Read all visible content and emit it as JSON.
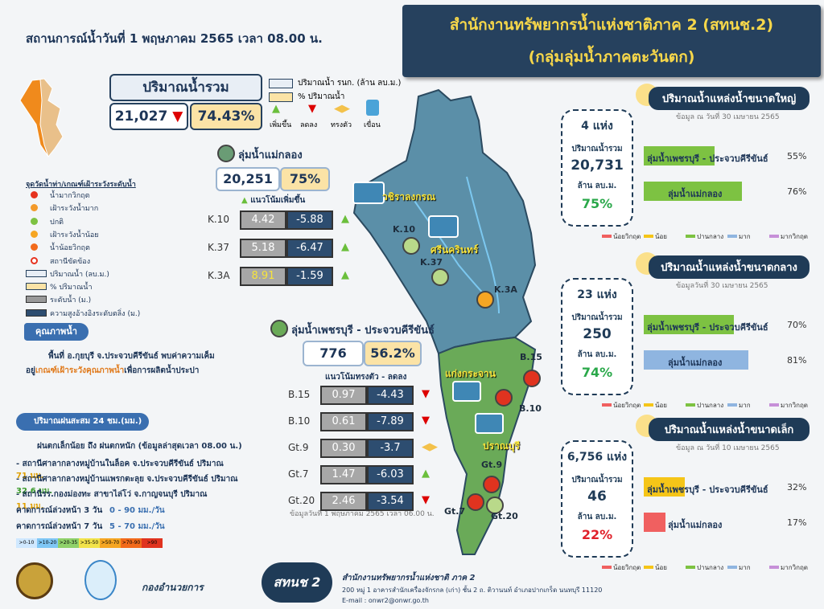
{
  "header": {
    "date_line": "สถานการณ์น้ำวันที่ 1 พฤษภาคม 2565 เวลา 08.00 น.",
    "title_line1": "สำนักงานทรัพยากรน้ำแห่งชาติภาค 2 (สทนช.2)",
    "title_line2": "(กลุ่มลุ่มน้ำภาคตะวันตก)"
  },
  "total": {
    "label": "ปริมาณน้ำรวม",
    "volume": "21,027",
    "percent": "74.43%"
  },
  "key": {
    "volume": "ปริมาณน้ำ รนก. (ล้าน ลบ.ม.)",
    "percent": "% ปริมาณน้ำ",
    "icons": [
      "เพิ่มขึ้น",
      "ลดลง",
      "ทรงตัว",
      "เขื่อน"
    ]
  },
  "legend": {
    "title": "จุดวัดน้ำท่า/เกณฑ์เฝ้าระวังระดับน้ำ",
    "items": [
      "น้ำมากวิกฤต",
      "เฝ้าระวังน้ำมาก",
      "ปกติ",
      "เฝ้าระวังน้ำน้อย",
      "น้ำน้อยวิกฤต",
      "สถานีขัดข้อง",
      "ปริมาณน้ำ (ลบ.ม.)",
      "% ปริมาณน้ำ",
      "ระดับน้ำ (ม.)",
      "ความสูงอ้างอิงระดับตลิ่ง (ม.)"
    ]
  },
  "quality": {
    "title": "คุณภาพน้ำ",
    "line1": "พื้นที่ อ.กุยบุรี จ.ประจวบคีรีขันธ์ พบค่าความเค็ม",
    "line2_a": "อยู่",
    "line2_b": "เกณฑ์เฝ้าระวังคุณภาพน้ำ",
    "line2_c": "เพื่อการผลิตน้ำประปา"
  },
  "rain": {
    "title": "ปริมาณฝนสะสม 24 ชม.(มม.)",
    "summary": "ฝนตกเล็กน้อย ถึง ฝนตกหนัก (ข้อมูลล่าสุดเวลา 08.00 น.)",
    "stations": [
      {
        "text": "- สถานีศาลากลางหมู่บ้านในล็อค จ.ประจวบคีรีขันธ์ ปริมาณ",
        "amount": "71 มม."
      },
      {
        "text": "- สถานีศาลากลางหมู่บ้านแพรกตะลุย จ.ประจวบคีรีขันธ์ ปริมาณ",
        "amount": "32.6 มม."
      },
      {
        "text": "- สถานีรร.กองม่องทะ สาขาไล่โว่ จ.กาญจนบุรี ปริมาณ",
        "amount": "11 มม."
      }
    ],
    "forecasts": [
      {
        "label": "คาดการณ์ล่วงหน้า 3 วัน",
        "range": "0 - 90 มม./วัน"
      },
      {
        "label": "คาดการณ์ล่วงหน้า 7 วัน",
        "range": "5 - 70 มม./วัน"
      }
    ],
    "scale": [
      ">0-10",
      ">10-20",
      ">20-35",
      ">35-50",
      ">50-70",
      ">70-90",
      ">90"
    ]
  },
  "basins": [
    {
      "name": "ลุ่มน้ำแม่กลอง",
      "volume": "20,251",
      "percent": "75%",
      "trend": "แนวโน้มเพิ่มขึ้น",
      "stations": [
        {
          "id": "K.10",
          "level": "4.42",
          "diff": "-5.88"
        },
        {
          "id": "K.37",
          "level": "5.18",
          "diff": "-6.47"
        },
        {
          "id": "K.3A",
          "level": "8.91",
          "diff": "-1.59"
        }
      ]
    },
    {
      "name": "ลุ่มน้ำเพชรบุรี - ประจวบคีรีขันธ์",
      "volume": "776",
      "percent": "56.2%",
      "trend": "แนวโน้มทรงตัว - ลดลง",
      "note": "ข้อมูลวันที่ 1 พฤษภาคม 2565 เวลา 06.00 น.",
      "stations": [
        {
          "id": "B.15",
          "level": "0.97",
          "diff": "-4.43"
        },
        {
          "id": "B.10",
          "level": "0.61",
          "diff": "-7.89"
        },
        {
          "id": "Gt.9",
          "level": "0.30",
          "diff": "-3.7"
        },
        {
          "id": "Gt.7",
          "level": "1.47",
          "diff": "-6.03"
        },
        {
          "id": "Gt.20",
          "level": "2.46",
          "diff": "-3.54"
        }
      ]
    }
  ],
  "map": {
    "dams": [
      "วชิราลงกรณ",
      "ศรีนครินทร์",
      "แก่งกระจาน",
      "ปราณบุรี"
    ],
    "stations": [
      "K.10",
      "K.37",
      "K.3A",
      "B.15",
      "B.10",
      "Gt.9",
      "Gt.7",
      "Gt.20"
    ]
  },
  "reservoirs": [
    {
      "title": "ปริมาณน้ำแหล่งน้ำขนาดใหญ่",
      "date": "ข้อมูล ณ วันที่ 30 เมษายน 2565",
      "count": "4 แห่ง",
      "label": "ปริมาณน้ำรวม",
      "volume": "20,731",
      "unit": "ล้าน ลบ.ม.",
      "percent": "75%",
      "bars": [
        {
          "name": "ลุ่มน้ำเพชรบุรี - ประจวบคีรีขันธ์",
          "value": 55,
          "value_label": "55%",
          "color": "#7dc242"
        },
        {
          "name": "ลุ่มน้ำแม่กลอง",
          "value": 76,
          "value_label": "76%",
          "color": "#7dc242"
        }
      ]
    },
    {
      "title": "ปริมาณน้ำแหล่งน้ำขนาดกลาง",
      "date": "ข้อมูลวันที่ 30 เมษายน 2565",
      "count": "23 แห่ง",
      "label": "ปริมาณน้ำรวม",
      "volume": "250",
      "unit": "ล้าน ลบ.ม.",
      "percent": "74%",
      "bars": [
        {
          "name": "ลุ่มน้ำเพชรบุรี - ประจวบคีรีขันธ์",
          "value": 70,
          "value_label": "70%",
          "color": "#7dc242"
        },
        {
          "name": "ลุ่มน้ำแม่กลอง",
          "value": 81,
          "value_label": "81%",
          "color": "#8fb5e0"
        }
      ]
    },
    {
      "title": "ปริมาณน้ำแหล่งน้ำขนาดเล็ก",
      "date": "ข้อมูล ณ วันที่ 10 เมษายน 2565",
      "count": "6,756 แห่ง",
      "label": "ปริมาณน้ำรวม",
      "volume": "46",
      "unit": "ล้าน ลบ.ม.",
      "percent": "22%",
      "bars": [
        {
          "name": "ลุ่มน้ำเพชรบุรี - ประจวบคีรีขันธ์",
          "value": 32,
          "value_label": "32%",
          "color": "#f5c518"
        },
        {
          "name": "ลุ่มน้ำแม่กลอง",
          "value": 17,
          "value_label": "17%",
          "color": "#f06060"
        }
      ]
    }
  ],
  "scale_legend": [
    "น้อยวิกฤต",
    "น้อย",
    "ปานกลาง",
    "มาก",
    "มากวิกฤต"
  ],
  "footer": {
    "logo_text": "กองอำนวยการ",
    "badge": "สทนช 2",
    "org": "สำนักงานทรัพยากรน้ำแห่งชาติ ภาค 2",
    "address": "200 หมู่ 1 อาคารสำนักเครื่องจักรกล (เก่า) ชั้น 2 ถ. ติวานนท์ อำเภอปากเกร็ด นนทบุรี 11120",
    "email": "E-mail : onwr2@onwr.go.th"
  }
}
